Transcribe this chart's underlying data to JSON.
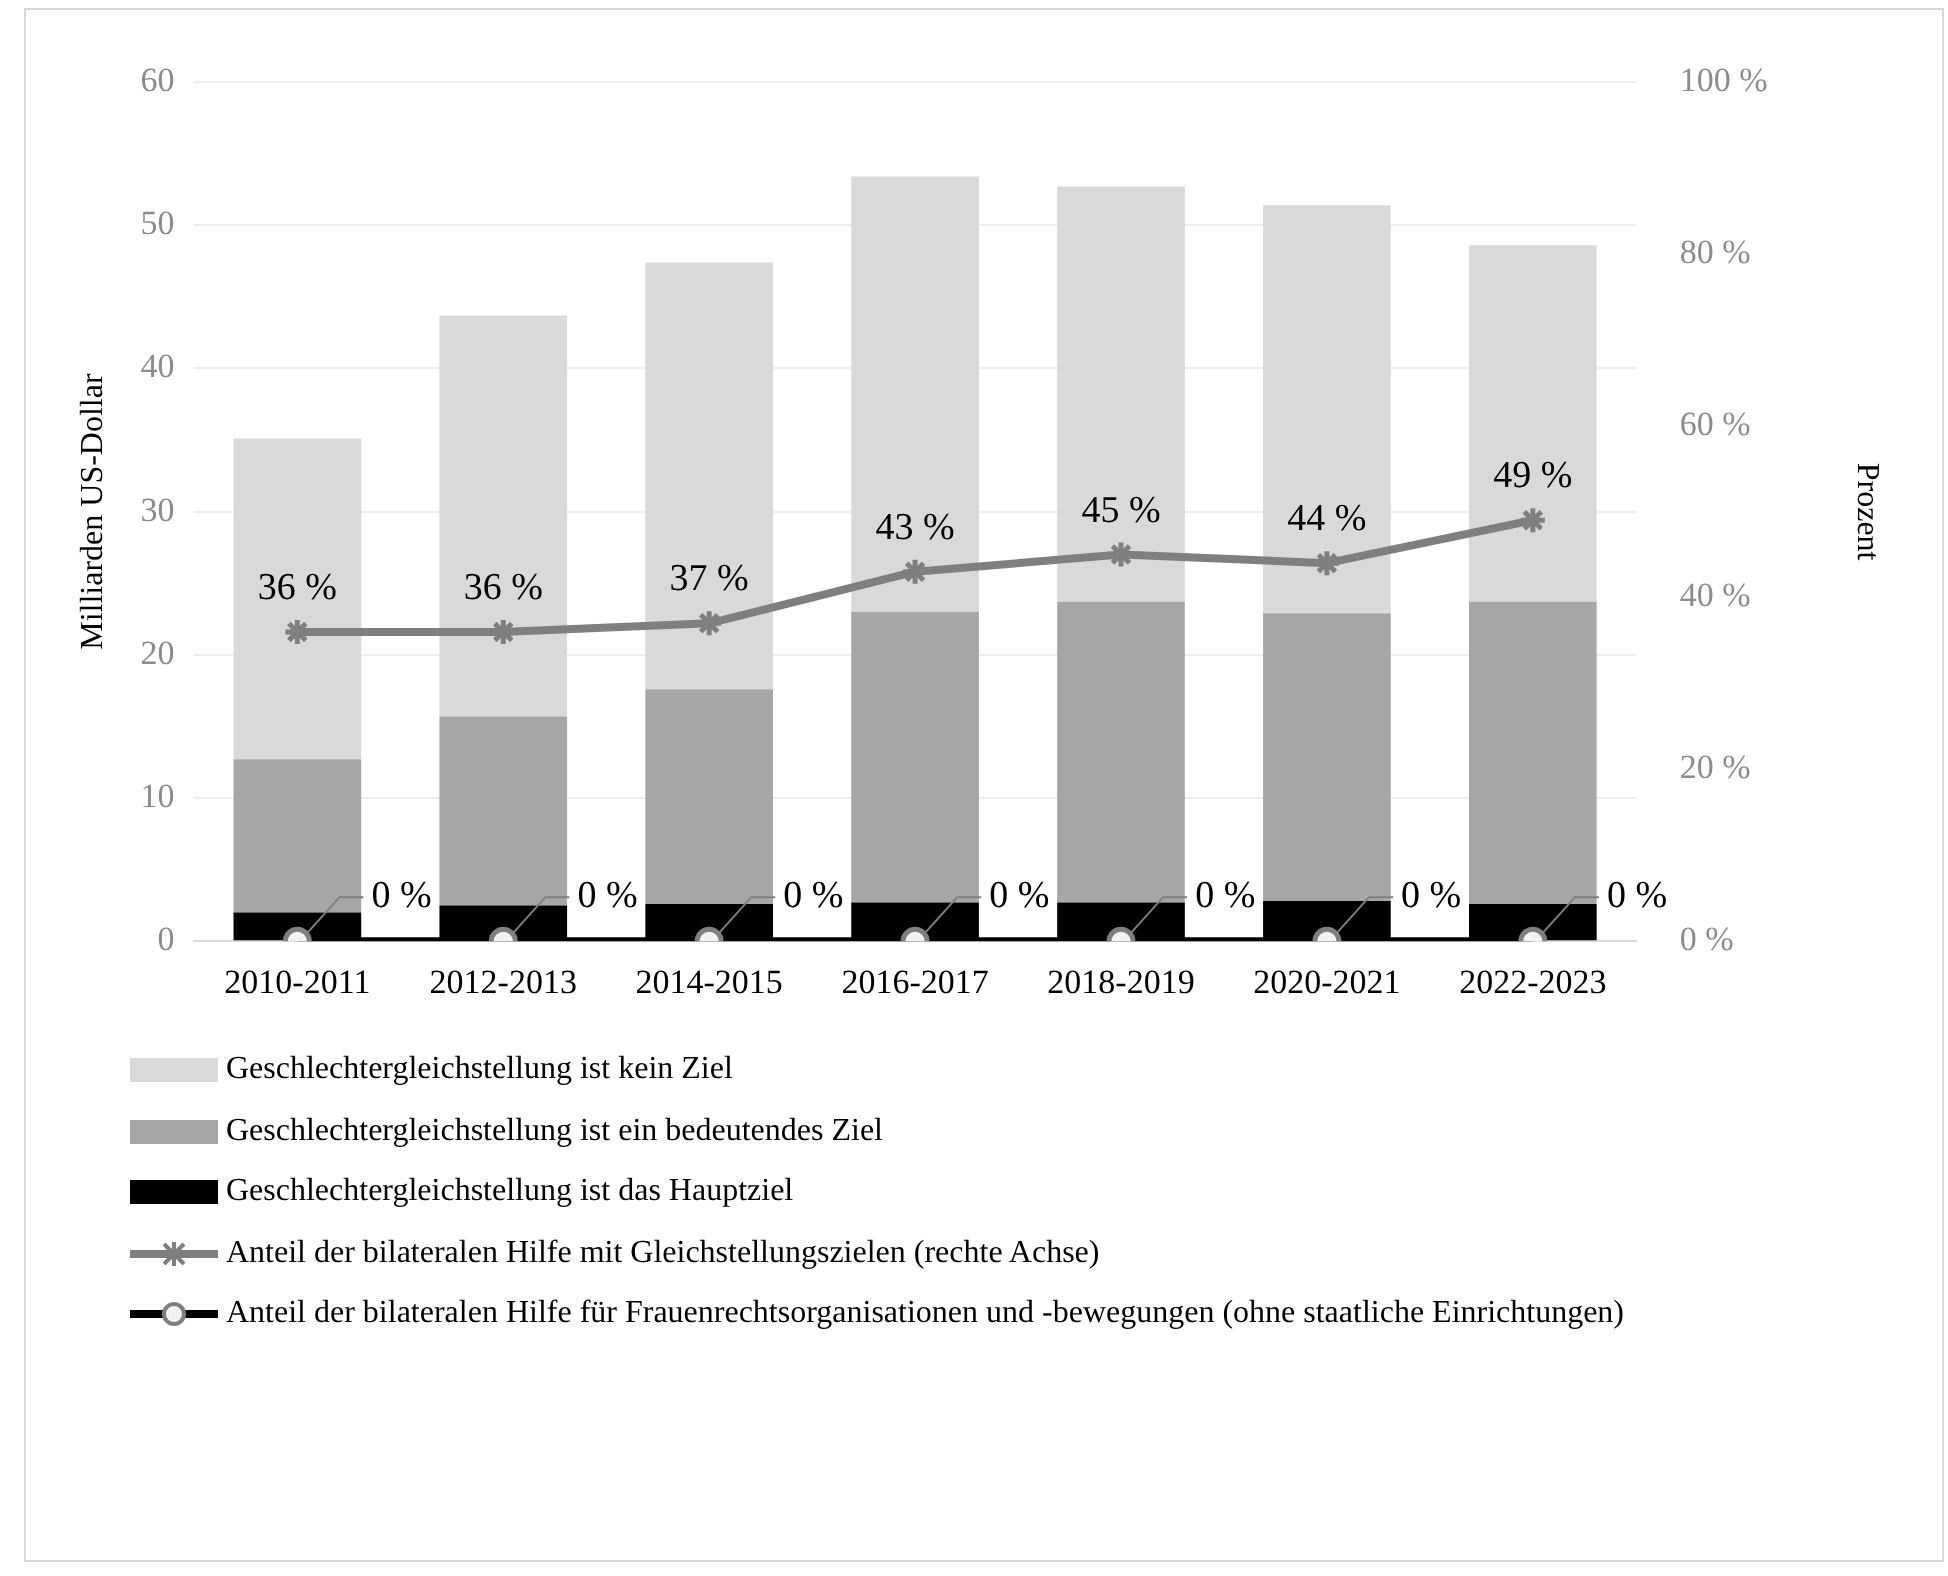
{
  "chart_data": {
    "type": "bar",
    "stacked": true,
    "ylabel": "Milliarden US-Dollar",
    "y2label": "Prozent",
    "categories": [
      "2010-2011",
      "2012-2013",
      "2014-2015",
      "2016-2017",
      "2018-2019",
      "2020-2021",
      "2022-2023"
    ],
    "series": [
      {
        "name": "Geschlechtergleichstellung ist das Hauptziel",
        "color": "#000000",
        "values": [
          2.0,
          2.5,
          2.6,
          2.7,
          2.7,
          2.8,
          2.6
        ]
      },
      {
        "name": "Geschlechtergleichstellung ist ein bedeutendes Ziel",
        "color": "#a6a6a6",
        "values": [
          10.7,
          13.2,
          15.0,
          20.3,
          21.0,
          20.1,
          21.1
        ]
      },
      {
        "name": "Geschlechtergleichstellung ist kein Ziel",
        "color": "#d9d9d9",
        "values": [
          22.4,
          28.0,
          29.8,
          30.4,
          29.0,
          28.5,
          24.9
        ]
      },
      {
        "name": "Anteil der bilateralen Hilfe mit Gleichstellungszielen (rechte Achse)",
        "type": "line",
        "axis": "y2",
        "color": "#7f7f7f",
        "marker": "cross",
        "values": [
          36,
          36,
          37,
          43,
          45,
          44,
          49
        ],
        "value_labels": [
          "36 %",
          "36 %",
          "37 %",
          "43 %",
          "45 %",
          "44 %",
          "49 %"
        ]
      },
      {
        "name": "Anteil der bilateralen Hilfe für Frauenrechtsorganisationen und -bewegungen (ohne staatliche Einrichtungen)",
        "type": "line",
        "axis": "y2",
        "color": "#000000",
        "marker": "circle",
        "values": [
          0,
          0,
          0,
          0,
          0,
          0,
          0
        ],
        "value_labels": [
          "0 %",
          "0 %",
          "0 %",
          "0 %",
          "0 %",
          "0 %",
          "0 %"
        ]
      }
    ],
    "ylim": [
      0,
      60
    ],
    "yticks": [
      0,
      10,
      20,
      30,
      40,
      50,
      60
    ],
    "y2lim": [
      0,
      100
    ],
    "y2ticks": [
      {
        "value": 0,
        "label": "0 %"
      },
      {
        "value": 20,
        "label": "20 %"
      },
      {
        "value": 40,
        "label": "40 %"
      },
      {
        "value": 60,
        "label": "60 %"
      },
      {
        "value": 80,
        "label": "80 %"
      },
      {
        "value": 100,
        "label": "100 %"
      }
    ],
    "grid": "y",
    "legend": "bottom"
  }
}
